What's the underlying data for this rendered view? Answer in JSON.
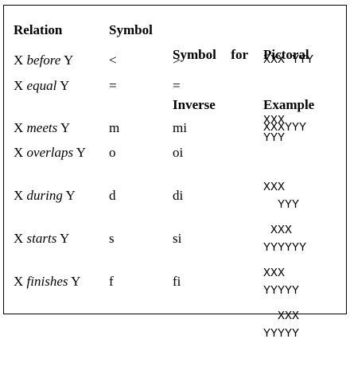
{
  "headers": {
    "relation": "Relation",
    "symbol": "Symbol",
    "inverse_line1_a": "Symbol",
    "inverse_line1_b": "for",
    "inverse_line2": "Inverse",
    "pictorial_line1": "Pictoral",
    "pictorial_line2": "Example"
  },
  "rows": [
    {
      "x": "X",
      "verb": "before",
      "y": "Y",
      "symbol": "<",
      "inverse": ">",
      "pic1": "XXX YYY",
      "pic2": ""
    },
    {
      "x": "X",
      "verb": "equal",
      "y": "Y",
      "symbol": "=",
      "inverse": "=",
      "pic1": "XXX",
      "pic2": "YYY"
    },
    {
      "x": "X",
      "verb": "meets",
      "y": "Y",
      "symbol": "m",
      "inverse": "mi",
      "pic1": "XXXYYY",
      "pic2": ""
    },
    {
      "x": "X",
      "verb": "overlaps",
      "y": "Y",
      "symbol": "o",
      "inverse": "oi",
      "pic1": "XXX",
      "pic2": "  YYY"
    },
    {
      "x": "X",
      "verb": "during",
      "y": "Y",
      "symbol": "d",
      "inverse": "di",
      "pic1": " XXX",
      "pic2": "YYYYYY"
    },
    {
      "x": "X",
      "verb": "starts",
      "y": "Y",
      "symbol": "s",
      "inverse": "si",
      "pic1": "XXX",
      "pic2": "YYYYY"
    },
    {
      "x": "X",
      "verb": "finishes",
      "y": "Y",
      "symbol": "f",
      "inverse": "fi",
      "pic1": "  XXX",
      "pic2": "YYYYY"
    }
  ]
}
